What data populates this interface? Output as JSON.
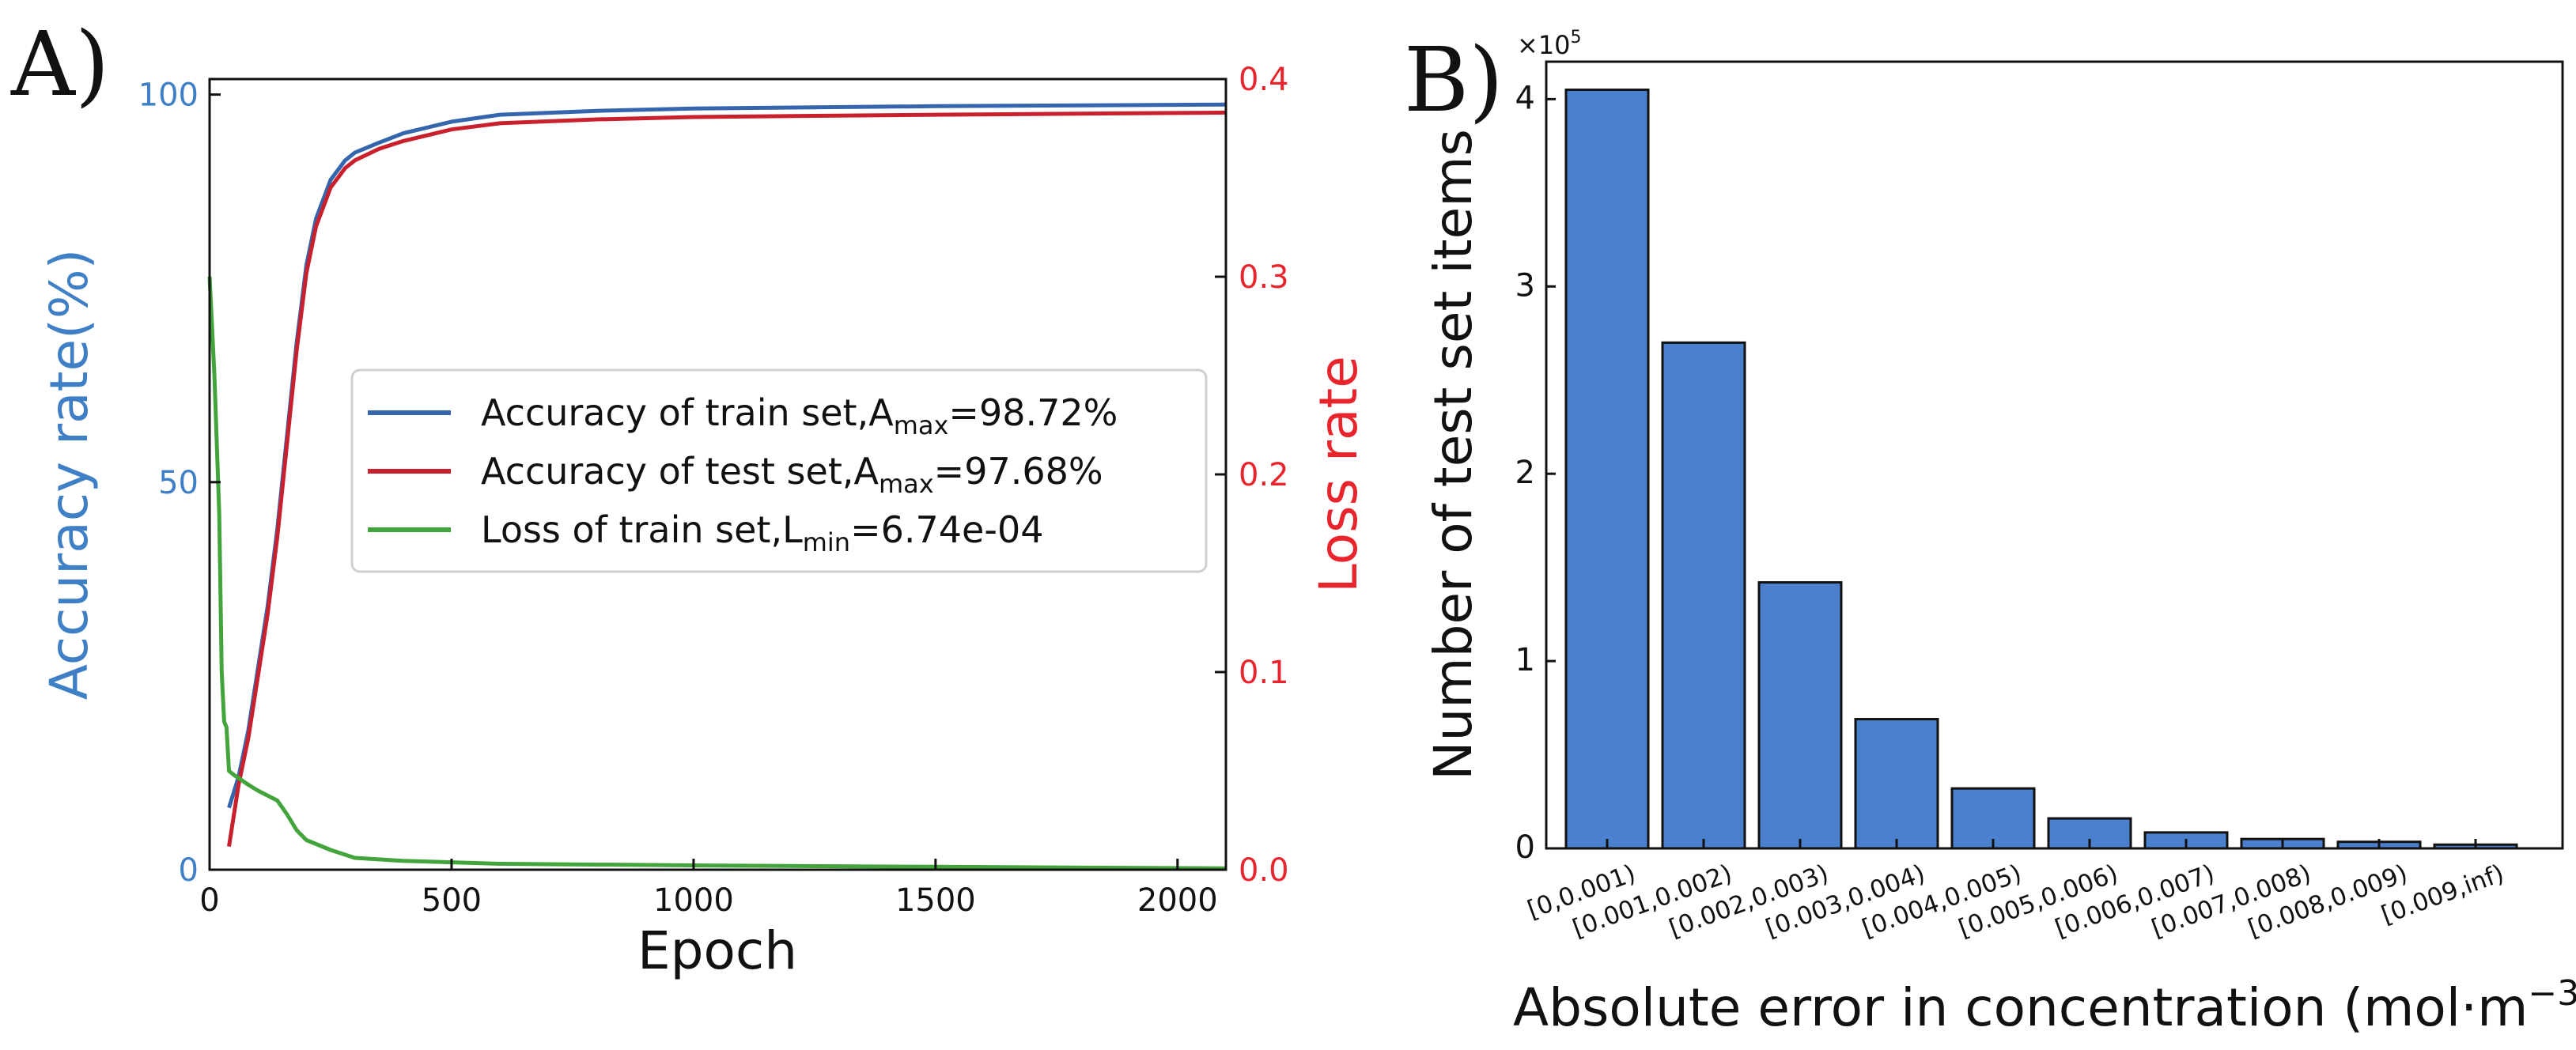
{
  "chart_data": [
    {
      "panel": "A)",
      "type": "line",
      "xlabel": "Epoch",
      "ylabel_left": "Accuracy rate(%)",
      "ylabel_right": "Loss rate",
      "xlim": [
        0,
        2100
      ],
      "ylim_left": [
        0,
        102
      ],
      "ylim_right": [
        0,
        0.4
      ],
      "xticks": [
        0,
        500,
        1000,
        1500,
        2000
      ],
      "yticks_left": [
        0,
        50,
        100
      ],
      "yticks_right": [
        0.0,
        0.1,
        0.2,
        0.3,
        0.4
      ],
      "ytick_labels_right": [
        "0.0",
        "0.1",
        "0.2",
        "0.3",
        "0.4"
      ],
      "colors": {
        "left_axis": "#3f7fc6",
        "right_axis": "#e8242c"
      },
      "legend_position": "center-right",
      "series": [
        {
          "name": "Accuracy of train set",
          "legend_prefix": "Accuracy of train set,A",
          "legend_sub": "max",
          "legend_suffix": "=98.72%",
          "axis": "left",
          "color": "#3566ad",
          "x": [
            40,
            60,
            80,
            100,
            120,
            140,
            160,
            180,
            200,
            220,
            250,
            280,
            300,
            350,
            400,
            500,
            600,
            800,
            1000,
            1500,
            2100
          ],
          "y": [
            8,
            12,
            18,
            26,
            34,
            44,
            56,
            68,
            78,
            84,
            89,
            91.5,
            92.5,
            93.8,
            95,
            96.5,
            97.4,
            97.9,
            98.2,
            98.5,
            98.72
          ]
        },
        {
          "name": "Accuracy of test set",
          "legend_prefix": "Accuracy of test set,A",
          "legend_sub": "max",
          "legend_suffix": "=97.68%",
          "axis": "left",
          "color": "#c8202d",
          "x": [
            40,
            60,
            80,
            100,
            120,
            140,
            160,
            180,
            200,
            220,
            250,
            280,
            300,
            350,
            400,
            500,
            600,
            800,
            1000,
            1500,
            2100
          ],
          "y": [
            3,
            11,
            17,
            25,
            33,
            43,
            55,
            67,
            77,
            83,
            88,
            90.5,
            91.5,
            93,
            94,
            95.5,
            96.3,
            96.8,
            97.1,
            97.4,
            97.68
          ]
        },
        {
          "name": "Loss of train set",
          "legend_prefix": "Loss of train set,L",
          "legend_sub": "min",
          "legend_suffix": "=6.74e-04",
          "axis": "right",
          "color": "#43a43b",
          "x": [
            0,
            10,
            20,
            25,
            30,
            35,
            40,
            50,
            80,
            100,
            140,
            160,
            180,
            200,
            250,
            300,
            400,
            600,
            1000,
            1500,
            2100
          ],
          "y": [
            0.3,
            0.25,
            0.18,
            0.1,
            0.075,
            0.072,
            0.05,
            0.048,
            0.043,
            0.04,
            0.035,
            0.028,
            0.02,
            0.015,
            0.01,
            0.006,
            0.0045,
            0.003,
            0.0022,
            0.0015,
            0.00067
          ]
        }
      ]
    },
    {
      "panel": "B)",
      "type": "bar",
      "xlabel": "Absolute error in concentration (mol·m",
      "xlabel_sup": "−3",
      "xlabel_end": ")",
      "ylabel": "Number of test set items",
      "scale_label": "×10",
      "scale_exp": "5",
      "ylim": [
        0,
        4.2
      ],
      "yticks": [
        0,
        1,
        2,
        3,
        4
      ],
      "bar_color": "#4a80cd",
      "categories": [
        "[0,0.001)",
        "[0.001,0.002)",
        "[0.002,0.003)",
        "[0.003,0.004)",
        "[0.004,0.005)",
        "[0.005,0.006)",
        "[0.006,0.007)",
        "[0.007,0.008)",
        "[0.008,0.009)",
        "[0.009,inf)"
      ],
      "values": [
        4.05,
        2.7,
        1.42,
        0.69,
        0.32,
        0.16,
        0.085,
        0.05,
        0.035,
        0.02
      ]
    }
  ]
}
